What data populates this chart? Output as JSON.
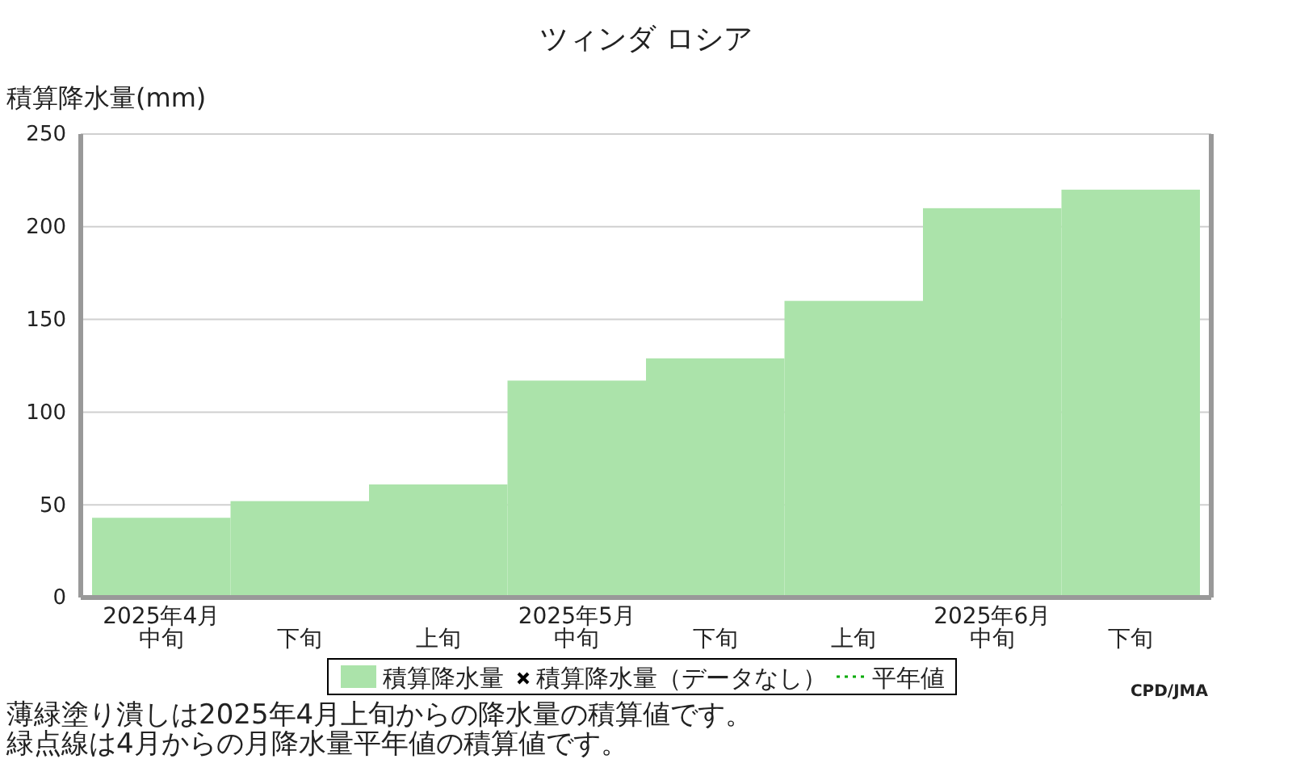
{
  "chart_data": {
    "type": "bar",
    "title": "ツィンダ ロシア",
    "ylabel": "積算降水量(mm)",
    "categories": [
      "2025年4月中旬",
      "下旬",
      "上旬",
      "2025年5月中旬",
      "下旬",
      "上旬",
      "2025年6月中旬",
      "下旬"
    ],
    "series": [
      {
        "name": "積算降水量",
        "color": "#abe3aa",
        "values": [
          43,
          52,
          61,
          117,
          129,
          160,
          210,
          220
        ]
      },
      {
        "name": "積算降水量（データなし）",
        "type": "scatter",
        "marker": "cross",
        "color": "#000000",
        "values": [
          null,
          null,
          null,
          null,
          null,
          null,
          null,
          null
        ]
      },
      {
        "name": "平年値",
        "type": "line",
        "line_style": "dotted",
        "color": "#00aa00",
        "values": [
          null,
          null,
          null,
          null,
          null,
          null,
          null,
          null
        ]
      }
    ],
    "ylim": [
      0,
      250
    ],
    "yticks": [
      0,
      50,
      100,
      150,
      200,
      250
    ],
    "grid": "y",
    "legend": "bottom",
    "annotations": [
      "CPD/JMA",
      "薄緑塗り潰しは2025年4月上旬からの降水量の積算値です。",
      "緑点線は4月からの月降水量平年値の積算値です。"
    ]
  }
}
